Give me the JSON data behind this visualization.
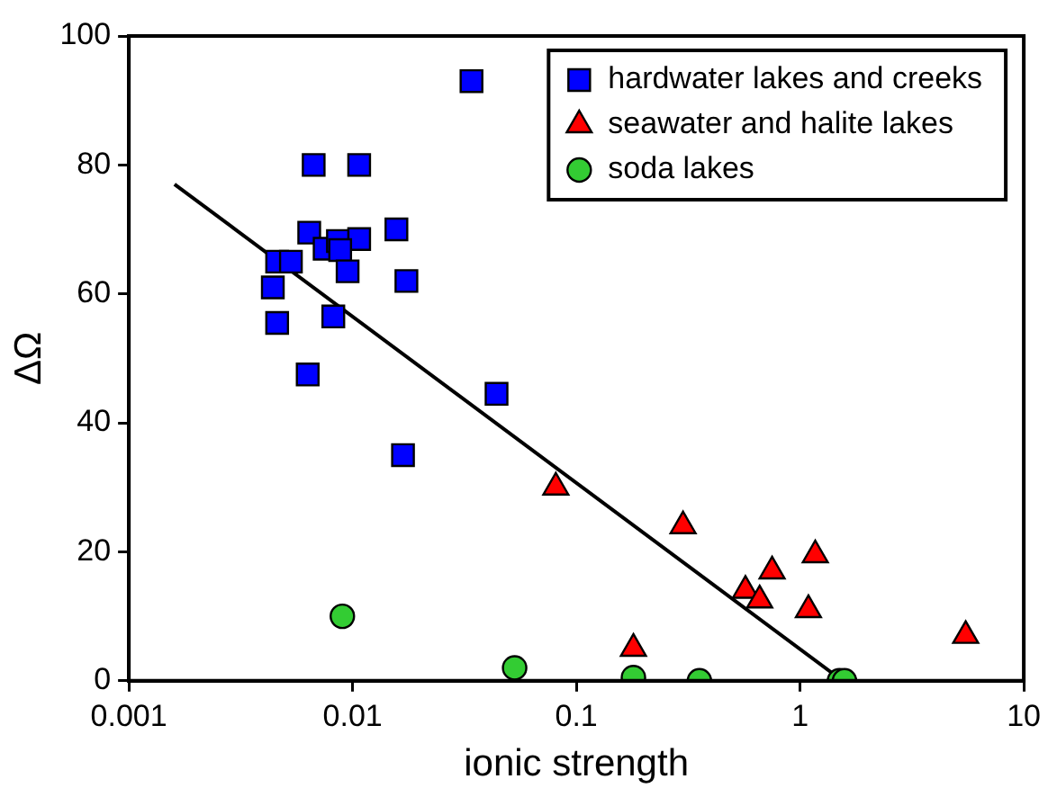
{
  "chart_data": {
    "type": "scatter",
    "xlabel": "ionic strength",
    "ylabel": "ΔΩ",
    "log": "x",
    "xlim": [
      0.001,
      10
    ],
    "xticks": [
      0.001,
      0.01,
      0.1,
      1,
      10
    ],
    "ylim": [
      0,
      100
    ],
    "yticks": [
      0,
      20,
      40,
      60,
      80,
      100
    ],
    "legend": "top right",
    "series": [
      {
        "name": "hardwater lakes and creeks",
        "color": "#0000ff",
        "marker": "square",
        "x": [
          0.034,
          0.0067,
          0.0107,
          0.0064,
          0.0157,
          0.0075,
          0.0086,
          0.0107,
          0.0088,
          0.0046,
          0.0053,
          0.0095,
          0.0174,
          0.0044,
          0.0046,
          0.0082,
          0.0063,
          0.044,
          0.0168
        ],
        "values": [
          93,
          80,
          80,
          69.5,
          70,
          67,
          68.2,
          68.5,
          66.8,
          65,
          65,
          63.5,
          62,
          61,
          55.5,
          56.5,
          47.5,
          44.5,
          35
        ]
      },
      {
        "name": "seawater and halite lakes",
        "color": "#ff0000",
        "marker": "triangle",
        "x": [
          0.081,
          0.3,
          0.18,
          0.57,
          0.66,
          0.75,
          1.17,
          1.09,
          5.5
        ],
        "values": [
          30,
          24,
          5,
          14,
          12.5,
          17,
          19.5,
          11,
          7
        ]
      },
      {
        "name": "soda lakes",
        "color": "#33cc33",
        "marker": "circle",
        "x": [
          0.009,
          0.053,
          0.18,
          0.355,
          1.5,
          1.58
        ],
        "values": [
          10,
          2,
          0.5,
          0,
          0,
          0
        ]
      },
      {
        "type": "line",
        "color": "#000000",
        "marker": "none",
        "x": [
          0.0016,
          1.55
        ],
        "values": [
          77,
          0
        ]
      }
    ]
  }
}
